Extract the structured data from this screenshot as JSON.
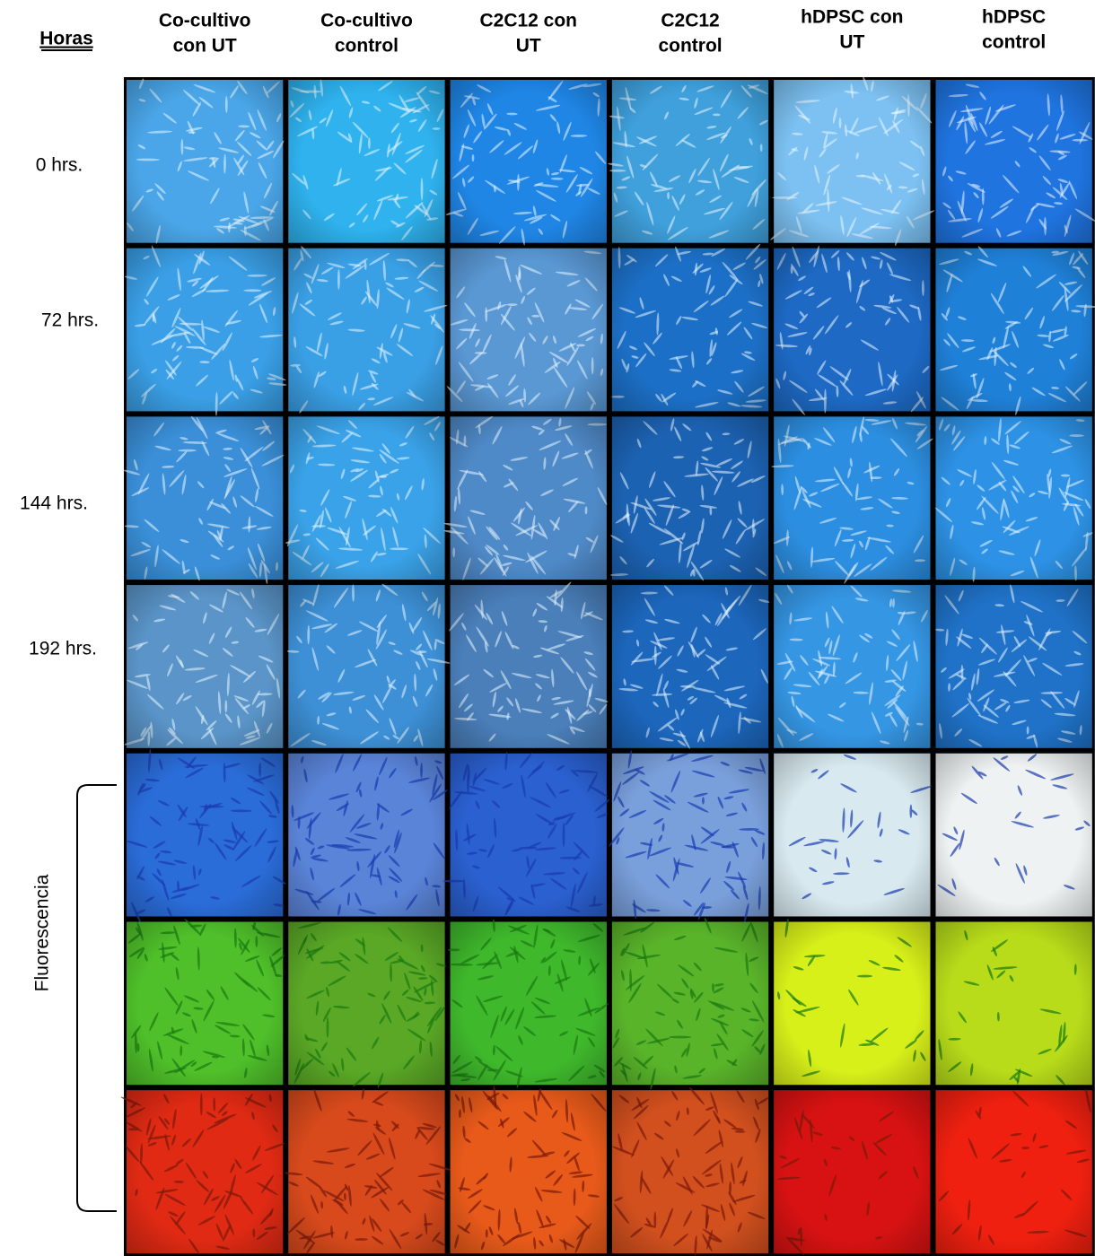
{
  "header": {
    "title": "Horas",
    "columns": [
      [
        "Co-cultivo",
        "con UT"
      ],
      [
        "Co-cultivo",
        "control"
      ],
      [
        "C2C12 con",
        "UT"
      ],
      [
        "C2C12",
        "control"
      ],
      [
        "hDPSC con",
        "UT"
      ],
      [
        "hDPSC",
        "control"
      ]
    ]
  },
  "rows": [
    "0 hrs.",
    "72 hrs.",
    "144 hrs.",
    "192 hrs."
  ],
  "side_label": "Fluorescencia"
}
